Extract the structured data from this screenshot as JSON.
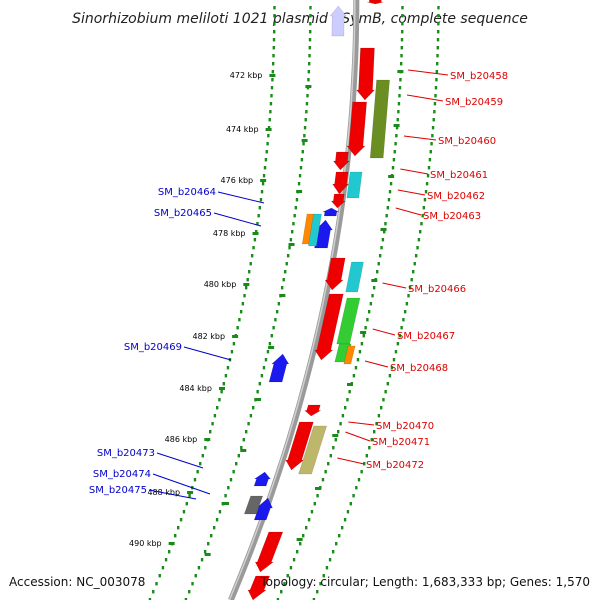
{
  "title": "Sinorhizobium meliloti 1021 plasmid pSymB, complete sequence",
  "accession": "Accession: NC_003078",
  "topology": "Topology: circular; Length: 1,683,333 bp; Genes: 1,570",
  "colors": {
    "backbone": "#7a7a7a",
    "dots": "#1a8a1a",
    "tick": "#1a8a1a",
    "forward_label": "#dd0000",
    "reverse_label": "#0000cc",
    "red": "#ee0000",
    "blue": "#1a1aee",
    "cyan": "#22c8d0",
    "orange": "#ff8800",
    "green": "#33cc33",
    "olive": "#6b8e23",
    "khaki": "#bdb76b",
    "gray": "#666666",
    "lavender": "#ccccff"
  },
  "ticks": [
    "472 kbp",
    "474 kbp",
    "476 kbp",
    "478 kbp",
    "480 kbp",
    "482 kbp",
    "484 kbp",
    "486 kbp",
    "488 kbp",
    "490 kbp"
  ],
  "forward_genes": [
    "SM_b20458",
    "SM_b20459",
    "SM_b20460",
    "SM_b20461",
    "SM_b20462",
    "SM_b20463",
    "SM_b20466",
    "SM_b20467",
    "SM_b20468",
    "SM_b20470",
    "SM_b20471",
    "SM_b20472"
  ],
  "reverse_genes": [
    "SM_b20464",
    "SM_b20465",
    "SM_b20469",
    "SM_b20473",
    "SM_b20474",
    "SM_b20475"
  ]
}
